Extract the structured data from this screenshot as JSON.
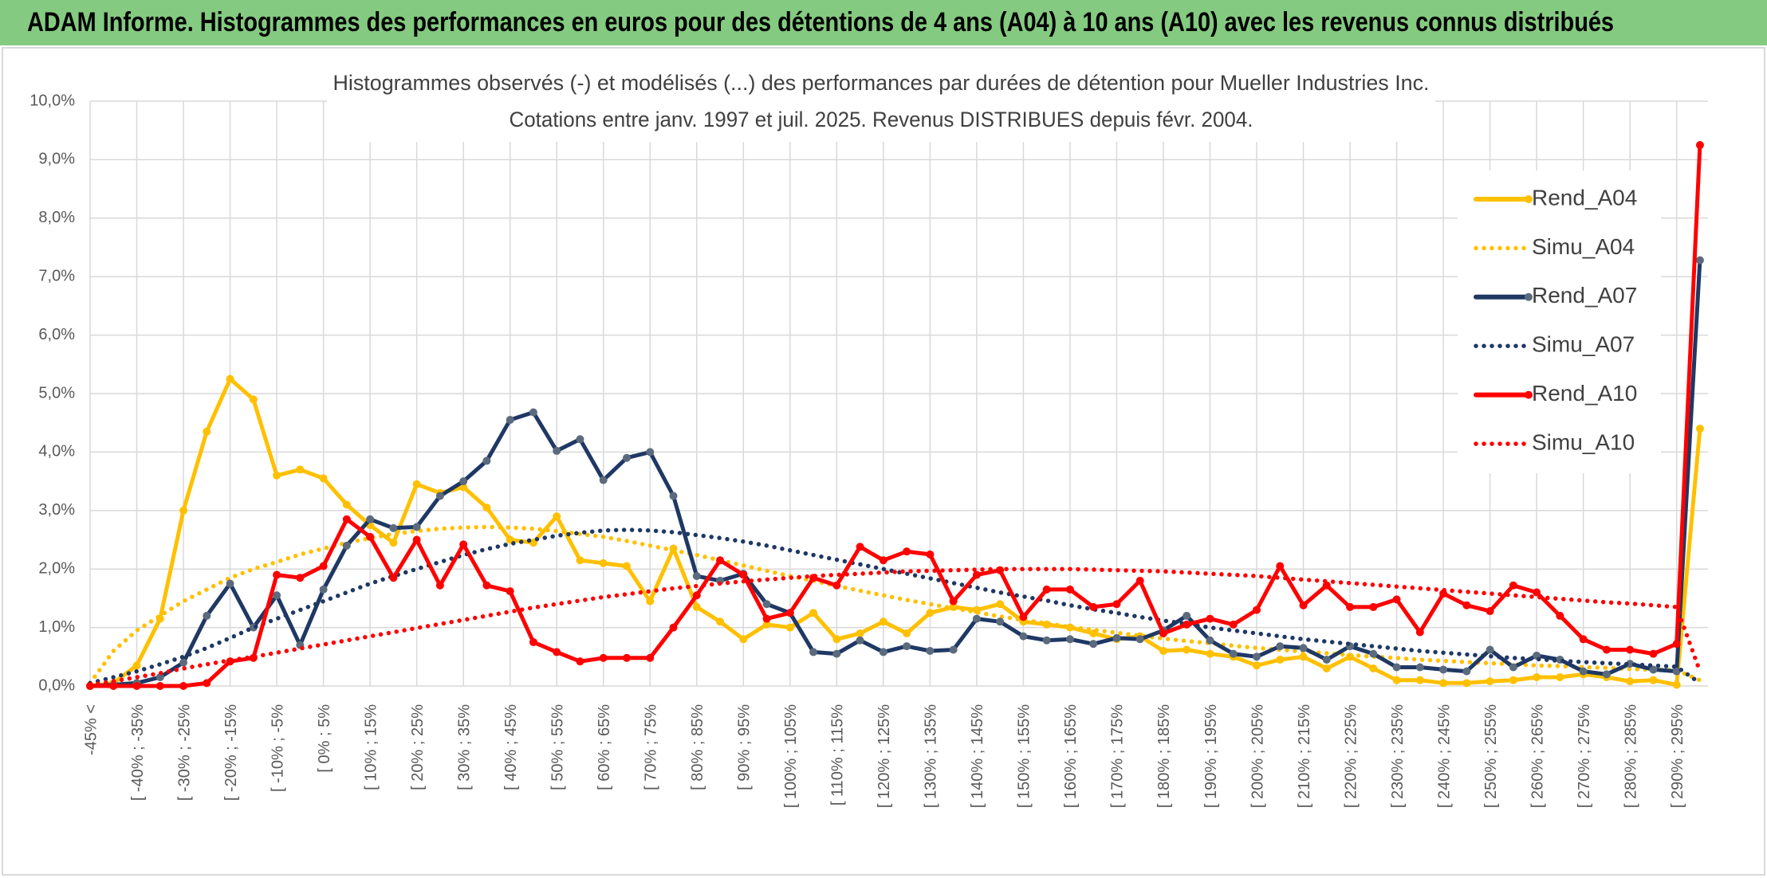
{
  "header": {
    "title": "ADAM Informe. Histogrammes des performances en euros pour des détentions de 4 ans (A04) à 10 ans (A10) avec les revenus connus distribués"
  },
  "chart_data": {
    "type": "line",
    "title": "Histogrammes observés (-) et modélisés (...) des performances par durées de détention pour Mueller Industries Inc.",
    "subtitle": "Cotations entre janv. 1997 et juil. 2025. Revenus DISTRIBUES depuis févr. 2004.",
    "categories": [
      "-45% <",
      null,
      "[ -40% ; -35%",
      null,
      "[ -30% ; -25%",
      null,
      "[ -20% ; -15%",
      null,
      "[ -10% ; -5%",
      null,
      "[ 0% ; 5%",
      null,
      "[ 10% ; 15%",
      null,
      "[ 20% ; 25%",
      null,
      "[ 30% ; 35%",
      null,
      "[ 40% ; 45%",
      null,
      "[ 50% ; 55%",
      null,
      "[ 60% ; 65%",
      null,
      "[ 70% ; 75%",
      null,
      "[ 80% ; 85%",
      null,
      "[ 90% ; 95%",
      null,
      "[ 100% ; 105%",
      null,
      "[ 110% ; 115%",
      null,
      "[ 120% ; 125%",
      null,
      "[ 130% ; 135%",
      null,
      "[ 140% ; 145%",
      null,
      "[ 150% ; 155%",
      null,
      "[ 160% ; 165%",
      null,
      "[ 170% ; 175%",
      null,
      "[ 180% ; 185%",
      null,
      "[ 190% ; 195%",
      null,
      "[ 200% ; 205%",
      null,
      "[ 210% ; 215%",
      null,
      "[ 220% ; 225%",
      null,
      "[ 230% ; 235%",
      null,
      "[ 240% ; 245%",
      null,
      "[ 250% ; 255%",
      null,
      "[ 260% ; 265%",
      null,
      "[ 270% ; 275%",
      null,
      "[ 280% ; 285%",
      null,
      "[ 290% ; 295%",
      null
    ],
    "series": [
      {
        "name": "Rend_A04",
        "color": "#FFC000",
        "marker_color": "#FFC000",
        "line_style": "solid",
        "values": [
          0,
          0.05,
          0.35,
          1.15,
          3.0,
          4.35,
          5.25,
          4.9,
          3.6,
          3.7,
          3.55,
          3.1,
          2.75,
          2.45,
          3.45,
          3.3,
          3.4,
          3.05,
          2.5,
          2.45,
          2.9,
          2.15,
          2.1,
          2.05,
          1.45,
          2.35,
          1.35,
          1.1,
          0.8,
          1.05,
          1.0,
          1.25,
          0.8,
          0.9,
          1.1,
          0.9,
          1.25,
          1.35,
          1.3,
          1.4,
          1.1,
          1.05,
          1.0,
          0.9,
          0.8,
          0.85,
          0.6,
          0.62,
          0.55,
          0.5,
          0.35,
          0.45,
          0.5,
          0.3,
          0.5,
          0.3,
          0.1,
          0.1,
          0.05,
          0.05,
          0.08,
          0.1,
          0.15,
          0.15,
          0.2,
          0.15,
          0.08,
          0.1,
          0.02,
          4.4
        ]
      },
      {
        "name": "Simu_A04",
        "color": "#FFC000",
        "line_style": "dotted",
        "values": [
          0.05,
          0.6,
          0.95,
          1.2,
          1.45,
          1.65,
          1.85,
          2.0,
          2.12,
          2.25,
          2.35,
          2.45,
          2.53,
          2.6,
          2.65,
          2.69,
          2.71,
          2.72,
          2.71,
          2.69,
          2.65,
          2.6,
          2.55,
          2.48,
          2.4,
          2.32,
          2.24,
          2.15,
          2.06,
          1.97,
          1.88,
          1.8,
          1.71,
          1.63,
          1.55,
          1.47,
          1.4,
          1.33,
          1.26,
          1.19,
          1.13,
          1.07,
          1.01,
          0.96,
          0.91,
          0.86,
          0.81,
          0.77,
          0.73,
          0.69,
          0.65,
          0.62,
          0.59,
          0.56,
          0.53,
          0.5,
          0.48,
          0.45,
          0.43,
          0.41,
          0.39,
          0.37,
          0.35,
          0.34,
          0.32,
          0.31,
          0.29,
          0.28,
          0.27,
          0.1
        ]
      },
      {
        "name": "Rend_A07",
        "color": "#1F3864",
        "marker_color": "#5B6B7D",
        "line_style": "solid",
        "values": [
          0,
          0.02,
          0.05,
          0.15,
          0.4,
          1.2,
          1.75,
          1.0,
          1.55,
          0.7,
          1.65,
          2.4,
          2.85,
          2.7,
          2.72,
          3.25,
          3.5,
          3.85,
          4.55,
          4.68,
          4.02,
          4.22,
          3.52,
          3.9,
          4.0,
          3.25,
          1.88,
          1.8,
          1.92,
          1.4,
          1.25,
          0.58,
          0.55,
          0.78,
          0.58,
          0.68,
          0.6,
          0.62,
          1.15,
          1.1,
          0.85,
          0.78,
          0.8,
          0.72,
          0.82,
          0.8,
          0.95,
          1.2,
          0.78,
          0.55,
          0.5,
          0.68,
          0.65,
          0.45,
          0.68,
          0.55,
          0.32,
          0.32,
          0.28,
          0.25,
          0.62,
          0.32,
          0.52,
          0.45,
          0.25,
          0.2,
          0.38,
          0.28,
          0.25,
          7.28
        ]
      },
      {
        "name": "Simu_A07",
        "color": "#1F3864",
        "line_style": "dotted",
        "values": [
          0.05,
          0.15,
          0.25,
          0.37,
          0.5,
          0.65,
          0.82,
          1.0,
          1.15,
          1.3,
          1.45,
          1.6,
          1.75,
          1.88,
          2.0,
          2.12,
          2.24,
          2.34,
          2.43,
          2.5,
          2.57,
          2.62,
          2.66,
          2.67,
          2.66,
          2.63,
          2.58,
          2.53,
          2.47,
          2.4,
          2.32,
          2.24,
          2.16,
          2.08,
          2.0,
          1.92,
          1.84,
          1.76,
          1.68,
          1.6,
          1.53,
          1.46,
          1.38,
          1.31,
          1.25,
          1.18,
          1.12,
          1.06,
          1.0,
          0.95,
          0.9,
          0.85,
          0.8,
          0.76,
          0.72,
          0.68,
          0.64,
          0.6,
          0.57,
          0.54,
          0.51,
          0.48,
          0.46,
          0.43,
          0.41,
          0.39,
          0.37,
          0.35,
          0.33,
          0.05
        ]
      },
      {
        "name": "Rend_A10",
        "color": "#FF0000",
        "marker_color": "#FF0000",
        "line_style": "solid",
        "values": [
          0,
          0,
          0,
          0,
          0,
          0.05,
          0.42,
          0.48,
          1.9,
          1.85,
          2.05,
          2.85,
          2.55,
          1.85,
          2.5,
          1.72,
          2.42,
          1.72,
          1.62,
          0.75,
          0.58,
          0.42,
          0.48,
          0.48,
          0.48,
          1.0,
          1.55,
          2.15,
          1.9,
          1.15,
          1.25,
          1.85,
          1.72,
          2.38,
          2.15,
          2.3,
          2.25,
          1.45,
          1.9,
          1.98,
          1.18,
          1.65,
          1.65,
          1.35,
          1.4,
          1.8,
          0.9,
          1.05,
          1.15,
          1.05,
          1.3,
          2.05,
          1.38,
          1.72,
          1.35,
          1.35,
          1.48,
          0.92,
          1.58,
          1.38,
          1.28,
          1.72,
          1.6,
          1.2,
          0.8,
          0.62,
          0.62,
          0.55,
          0.72,
          9.25
        ]
      },
      {
        "name": "Simu_A10",
        "color": "#FF0000",
        "line_style": "dotted",
        "values": [
          0.02,
          0.08,
          0.15,
          0.22,
          0.3,
          0.37,
          0.44,
          0.5,
          0.57,
          0.64,
          0.71,
          0.78,
          0.85,
          0.92,
          0.99,
          1.06,
          1.13,
          1.2,
          1.27,
          1.34,
          1.4,
          1.46,
          1.52,
          1.57,
          1.62,
          1.67,
          1.71,
          1.75,
          1.79,
          1.82,
          1.85,
          1.88,
          1.9,
          1.92,
          1.94,
          1.96,
          1.97,
          1.98,
          1.99,
          2.0,
          2.0,
          2.0,
          2.0,
          1.99,
          1.98,
          1.97,
          1.96,
          1.94,
          1.92,
          1.9,
          1.88,
          1.85,
          1.82,
          1.79,
          1.76,
          1.73,
          1.7,
          1.67,
          1.64,
          1.61,
          1.58,
          1.55,
          1.52,
          1.49,
          1.46,
          1.43,
          1.41,
          1.38,
          1.35,
          0.25
        ]
      }
    ],
    "ylim": [
      0,
      10
    ],
    "yticks": [
      {
        "value": 0,
        "label": "0,0%"
      },
      {
        "value": 1,
        "label": "1,0%"
      },
      {
        "value": 2,
        "label": "2,0%"
      },
      {
        "value": 3,
        "label": "3,0%"
      },
      {
        "value": 4,
        "label": "4,0%"
      },
      {
        "value": 5,
        "label": "5,0%"
      },
      {
        "value": 6,
        "label": "6,0%"
      },
      {
        "value": 7,
        "label": "7,0%"
      },
      {
        "value": 8,
        "label": "8,0%"
      },
      {
        "value": 9,
        "label": "9,0%"
      },
      {
        "value": 10,
        "label": "10,0%"
      }
    ],
    "grid": true,
    "legend": "right"
  }
}
